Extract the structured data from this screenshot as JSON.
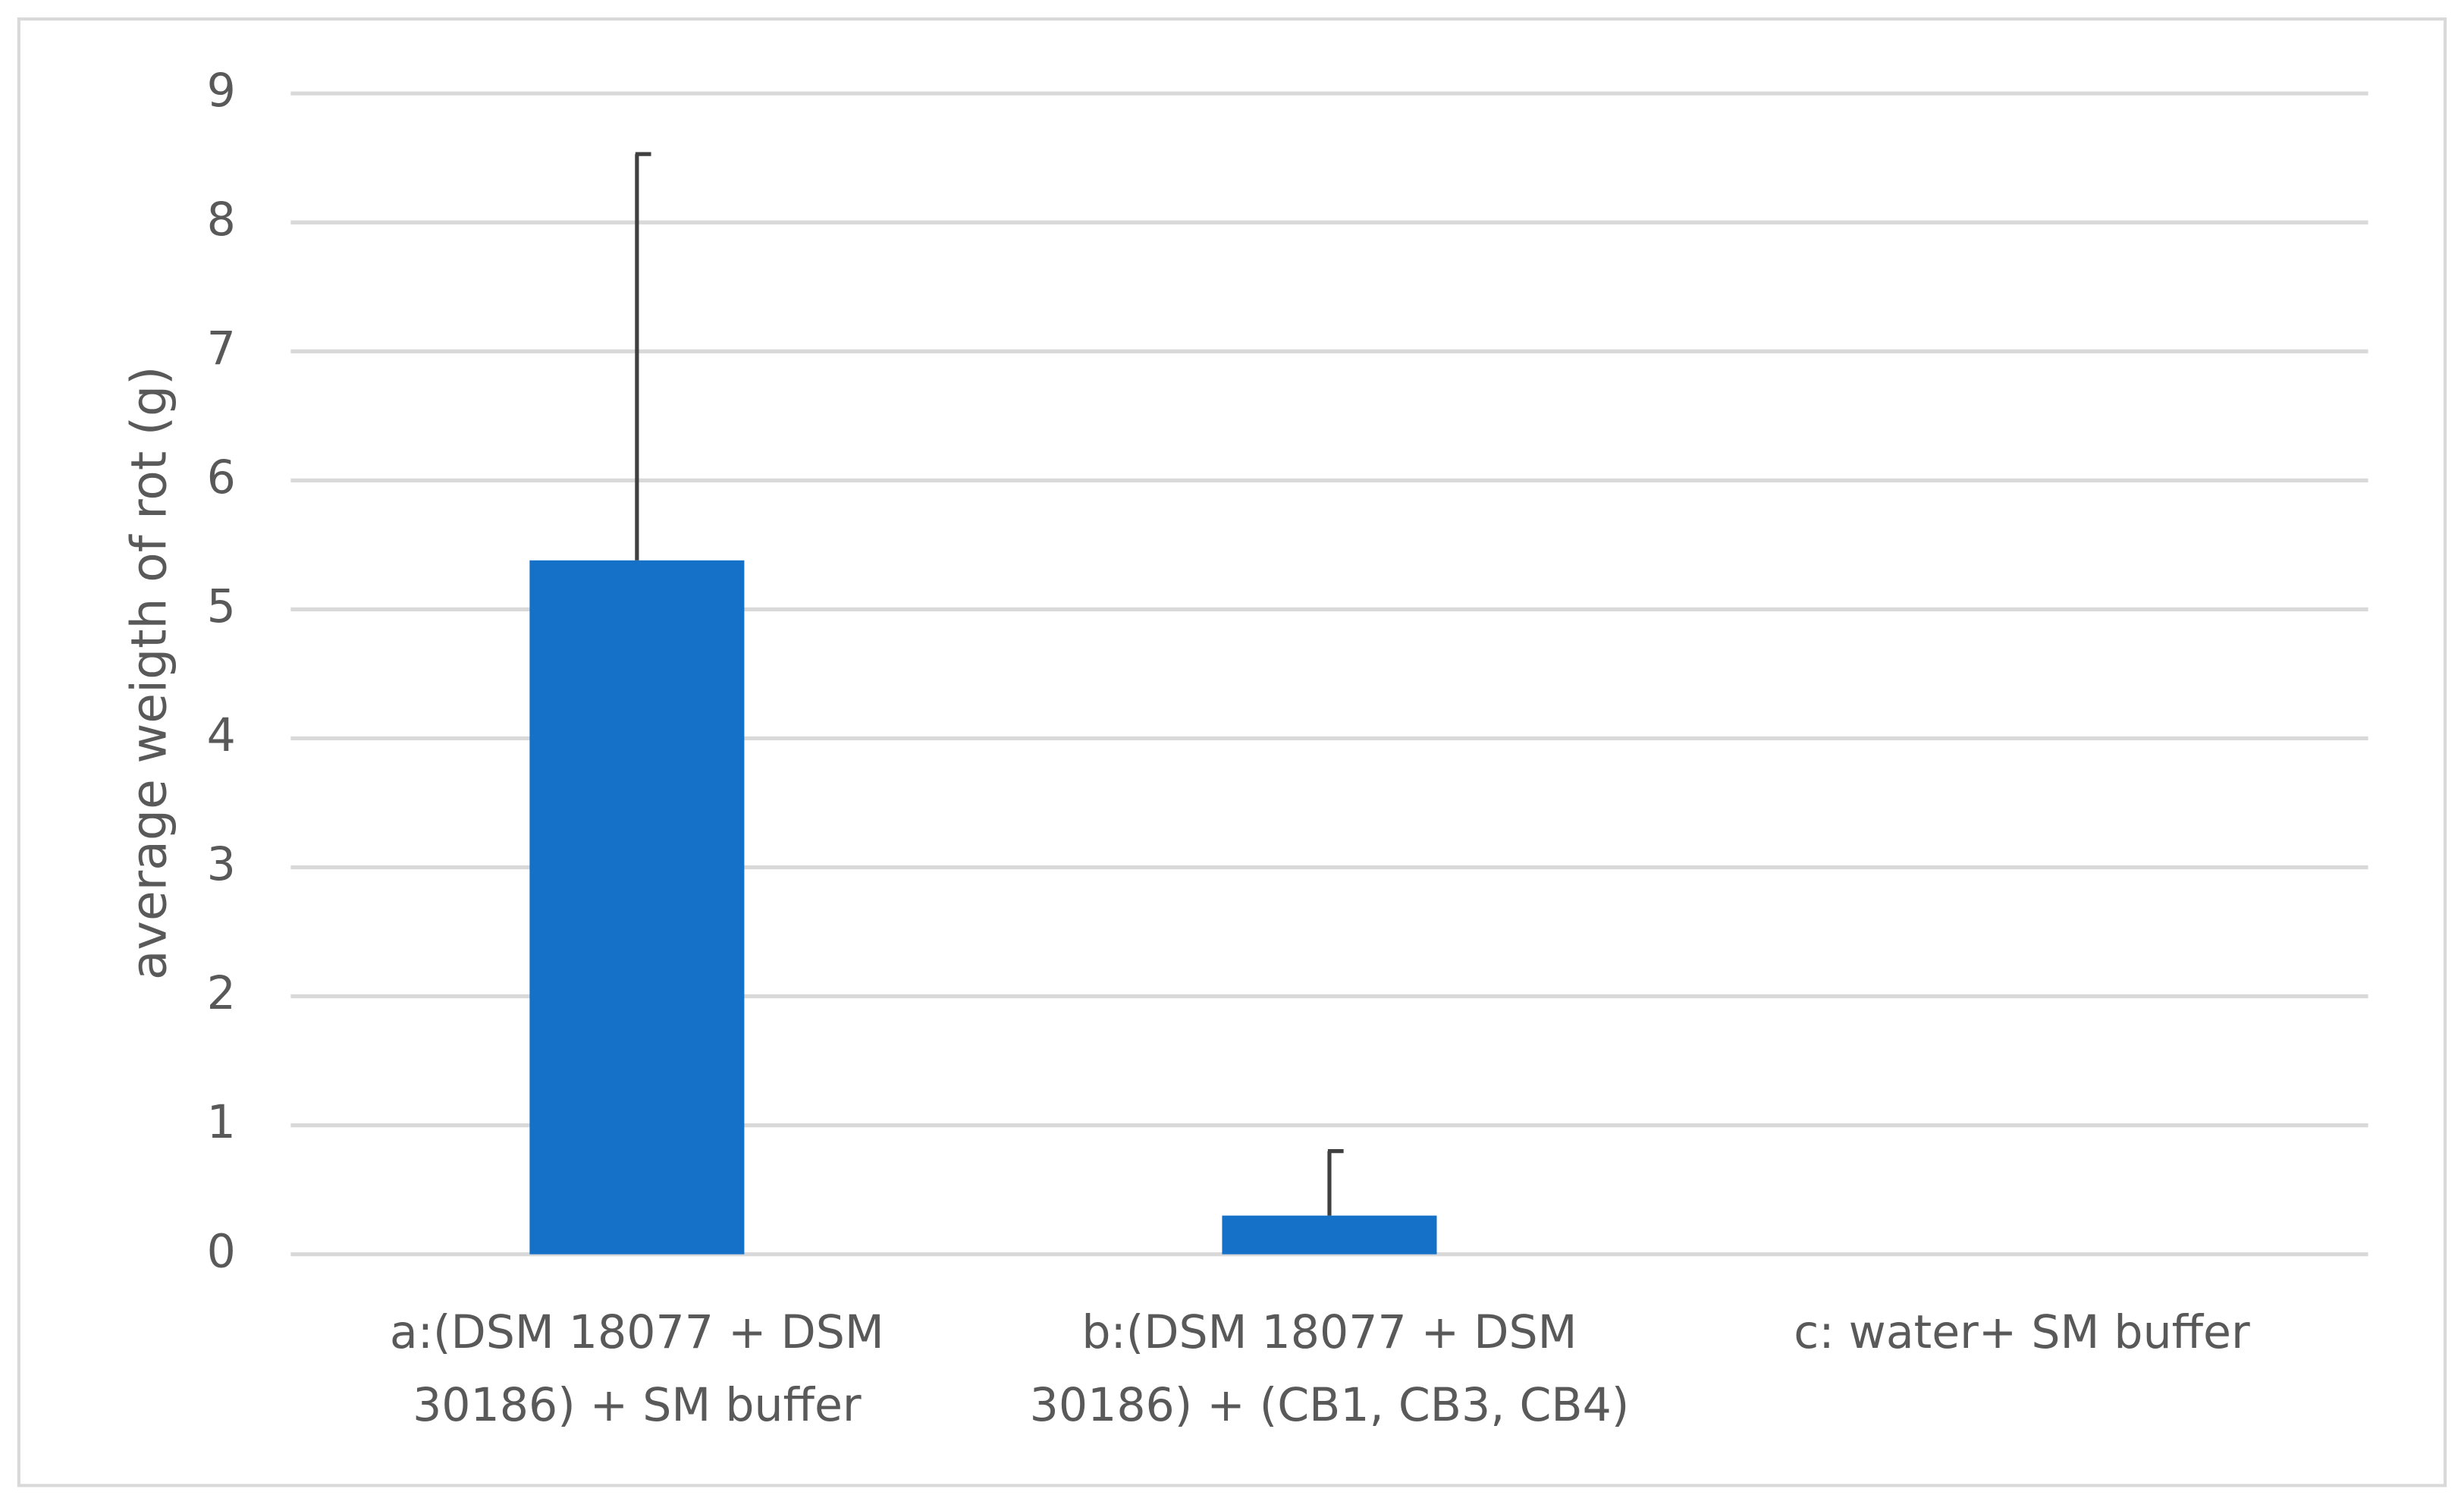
{
  "chart_data": {
    "type": "bar",
    "ylabel": "average weigth of rot (g)",
    "categories": [
      "a:(DSM 18077 + DSM 30186) + SM buffer",
      "b:(DSM 18077 + DSM 30186) + (CB1, CB3, CB4)",
      "c: water+ SM buffer"
    ],
    "values": [
      5.38,
      0.3,
      0
    ],
    "errors": [
      3.15,
      0.5,
      null
    ],
    "color": "#1570c8",
    "ylim": [
      0,
      9
    ],
    "yticks": [
      0,
      1,
      2,
      3,
      4,
      5,
      6,
      7,
      8,
      9
    ],
    "grid": true
  }
}
